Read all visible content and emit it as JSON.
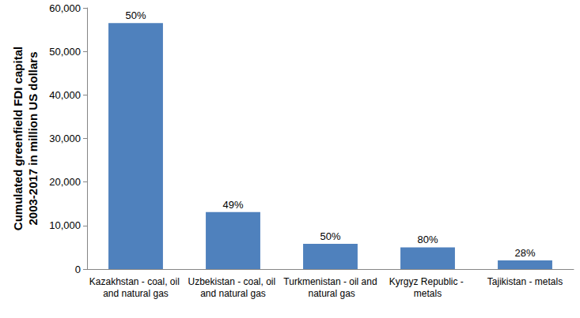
{
  "chart_data": {
    "type": "bar",
    "y_label": "Cumulated greenfield FDI capital\n2003-2017 in million US dollars",
    "categories": [
      "Kazakhstan - coal, oil and natural gas",
      "Uzbekistan - coal, oil and natural gas",
      "Turkmenistan - oil and natural gas",
      "Kyrgyz Republic - metals",
      "Tajikistan - metals"
    ],
    "values": [
      56500,
      13100,
      5800,
      5000,
      2000
    ],
    "annotations": [
      "50%",
      "49%",
      "50%",
      "80%",
      "28%"
    ],
    "color": "#4f81bd",
    "ylim": [
      0,
      60000
    ],
    "yticks": [
      0,
      10000,
      20000,
      30000,
      40000,
      50000,
      60000
    ],
    "grid": false
  }
}
